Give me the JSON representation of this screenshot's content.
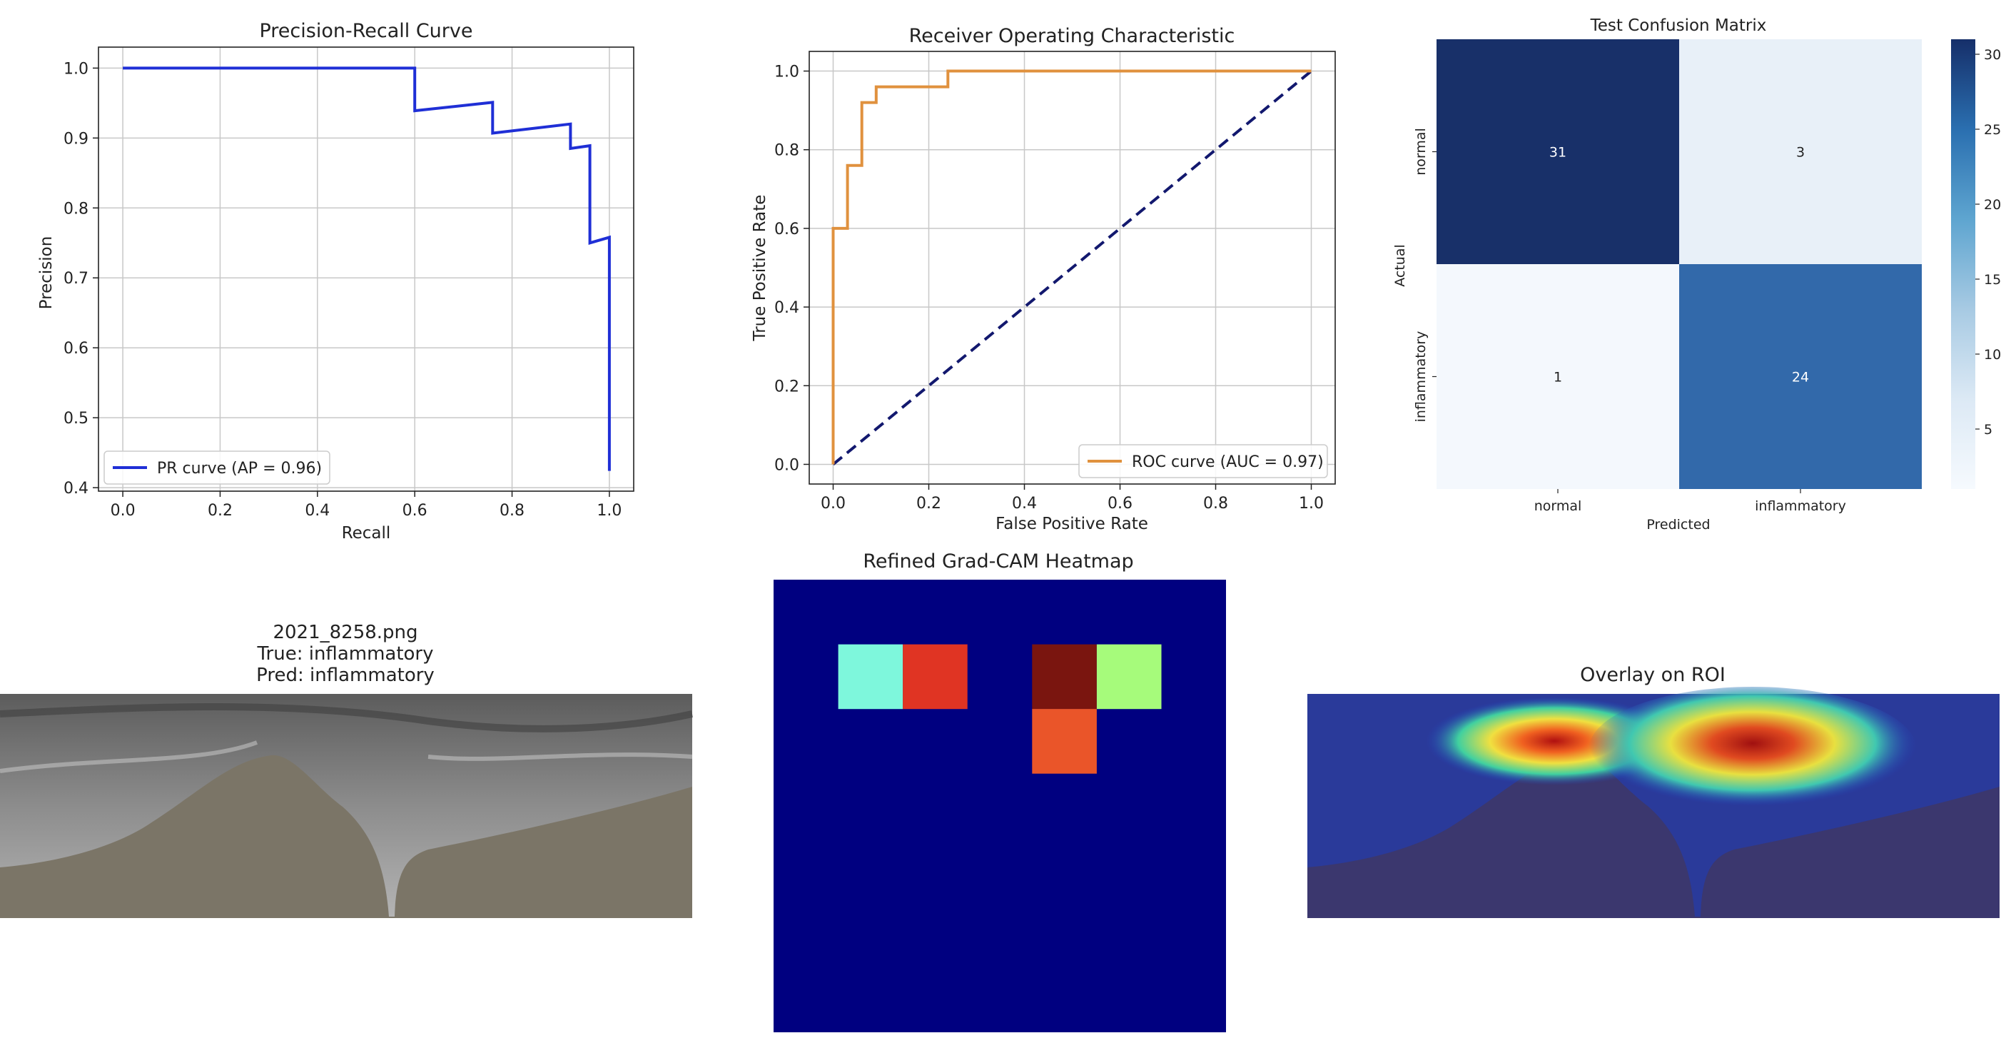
{
  "colors": {
    "pr_line": "#1f2fd6",
    "roc_line": "#e0913e",
    "diagonal": "#12186e",
    "grid": "#c8c8c8",
    "jet_background": "#000080",
    "cm_dark": "#183069",
    "cm_mid": "#3269aa",
    "cm_light": "#e8f0f8",
    "cm_lightest": "#f4f8fd"
  },
  "roi_panel": {
    "filename": "2021_8258.png",
    "true_label": "True: inflammatory",
    "pred_label": "Pred: inflammatory"
  },
  "overlay_panel": {
    "title": "Overlay on ROI"
  },
  "chart_data": [
    {
      "type": "line",
      "title": "Precision-Recall Curve",
      "xlabel": "Recall",
      "ylabel": "Precision",
      "xlim": [
        -0.05,
        1.05
      ],
      "ylim": [
        0.395,
        1.03
      ],
      "xticks": [
        0.0,
        0.2,
        0.4,
        0.6,
        0.8,
        1.0
      ],
      "xtick_labels": [
        "0.0",
        "0.2",
        "0.4",
        "0.6",
        "0.8",
        "1.0"
      ],
      "yticks": [
        0.4,
        0.5,
        0.6,
        0.7,
        0.8,
        0.9,
        1.0
      ],
      "ytick_labels": [
        "0.4",
        "0.5",
        "0.6",
        "0.7",
        "0.8",
        "0.9",
        "1.0"
      ],
      "grid": true,
      "legend_position": "lower-left",
      "series": [
        {
          "name": "PR curve (AP = 0.96)",
          "x": [
            0.0,
            0.6,
            0.6,
            0.76,
            0.76,
            0.92,
            0.92,
            0.96,
            0.96,
            1.0,
            1.0
          ],
          "y": [
            1.0,
            1.0,
            0.939,
            0.951,
            0.907,
            0.92,
            0.885,
            0.889,
            0.75,
            0.758,
            0.424
          ]
        }
      ]
    },
    {
      "type": "line",
      "title": "Receiver Operating Characteristic",
      "xlabel": "False Positive Rate",
      "ylabel": "True Positive Rate",
      "xlim": [
        -0.05,
        1.05
      ],
      "ylim": [
        -0.05,
        1.05
      ],
      "xticks": [
        0.0,
        0.2,
        0.4,
        0.6,
        0.8,
        1.0
      ],
      "xtick_labels": [
        "0.0",
        "0.2",
        "0.4",
        "0.6",
        "0.8",
        "1.0"
      ],
      "yticks": [
        0.0,
        0.2,
        0.4,
        0.6,
        0.8,
        1.0
      ],
      "ytick_labels": [
        "0.0",
        "0.2",
        "0.4",
        "0.6",
        "0.8",
        "1.0"
      ],
      "grid": true,
      "legend_position": "lower-right",
      "series": [
        {
          "name": "ROC curve (AUC = 0.97)",
          "x": [
            0.0,
            0.0,
            0.03,
            0.03,
            0.06,
            0.06,
            0.09,
            0.09,
            0.24,
            0.24,
            1.0
          ],
          "y": [
            0.0,
            0.6,
            0.6,
            0.76,
            0.76,
            0.92,
            0.92,
            0.96,
            0.96,
            1.0,
            1.0
          ]
        }
      ],
      "diagonal": {
        "x": [
          0.0,
          1.0
        ],
        "y": [
          0.0,
          1.0
        ]
      }
    },
    {
      "type": "heatmap",
      "title": "Test Confusion Matrix",
      "xlabel": "Predicted",
      "ylabel": "Actual",
      "x_categories": [
        "normal",
        "inflammatory"
      ],
      "y_categories": [
        "normal",
        "inflammatory"
      ],
      "values": [
        [
          31,
          3
        ],
        [
          1,
          24
        ]
      ],
      "colorbar_ticks": [
        5,
        10,
        15,
        20,
        25,
        30
      ],
      "colorbar_tick_labels": [
        "5",
        "10",
        "15",
        "20",
        "25",
        "30"
      ],
      "colorbar_range": [
        1,
        31
      ]
    },
    {
      "type": "heatmap",
      "title": "Refined Grad-CAM Heatmap",
      "grid_size": [
        7,
        7
      ],
      "hot_cells": [
        {
          "row": 1,
          "col": 1,
          "color": "#7ef7dc"
        },
        {
          "row": 1,
          "col": 2,
          "color": "#e03423"
        },
        {
          "row": 1,
          "col": 4,
          "color": "#7a150f"
        },
        {
          "row": 1,
          "col": 5,
          "color": "#a6fb7b"
        },
        {
          "row": 2,
          "col": 4,
          "color": "#ea5529"
        }
      ]
    }
  ]
}
